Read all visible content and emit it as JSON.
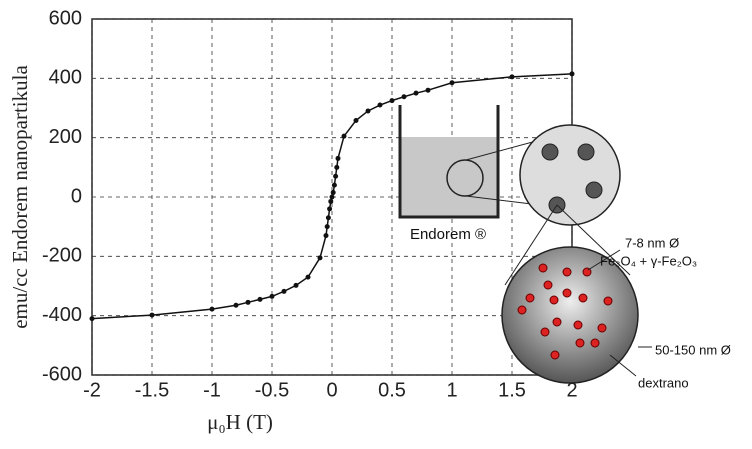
{
  "chart_data": {
    "type": "line",
    "x_label": "μ₀H (T)",
    "y_label": "emu/cc Endorem nanopartikula",
    "x": [
      -2,
      -1.5,
      -1,
      -0.8,
      -0.7,
      -0.6,
      -0.5,
      -0.4,
      -0.3,
      -0.2,
      -0.1,
      -0.05,
      -0.04,
      -0.03,
      -0.02,
      -0.01,
      0,
      0.01,
      0.02,
      0.03,
      0.04,
      0.05,
      0.1,
      0.2,
      0.3,
      0.4,
      0.5,
      0.6,
      0.7,
      0.8,
      1,
      1.5,
      2
    ],
    "series": [
      {
        "color": "#111111",
        "values": [
          -410,
          -398,
          -378,
          -365,
          -355,
          -345,
          -335,
          -318,
          -298,
          -270,
          -205,
          -130,
          -100,
          -70,
          -40,
          -15,
          0,
          15,
          40,
          70,
          100,
          130,
          205,
          258,
          290,
          310,
          325,
          338,
          350,
          360,
          385,
          405,
          415
        ]
      }
    ],
    "xlim": [
      -2,
      2
    ],
    "xticks": [
      -2,
      -1.5,
      -1,
      -0.5,
      0,
      0.5,
      1,
      1.5,
      2
    ],
    "ylim": [
      -600,
      600
    ],
    "yticks": [
      -600,
      -400,
      -200,
      0,
      200,
      400,
      600
    ],
    "grid": true,
    "annotations": {
      "beaker": "Endorem ®",
      "core_size": "7-8 nm Ø",
      "core_material": "Fe₃O₄ + γ-Fe₂O₃",
      "particle_size": "50-150 nm Ø",
      "coating": "dextrano"
    }
  }
}
